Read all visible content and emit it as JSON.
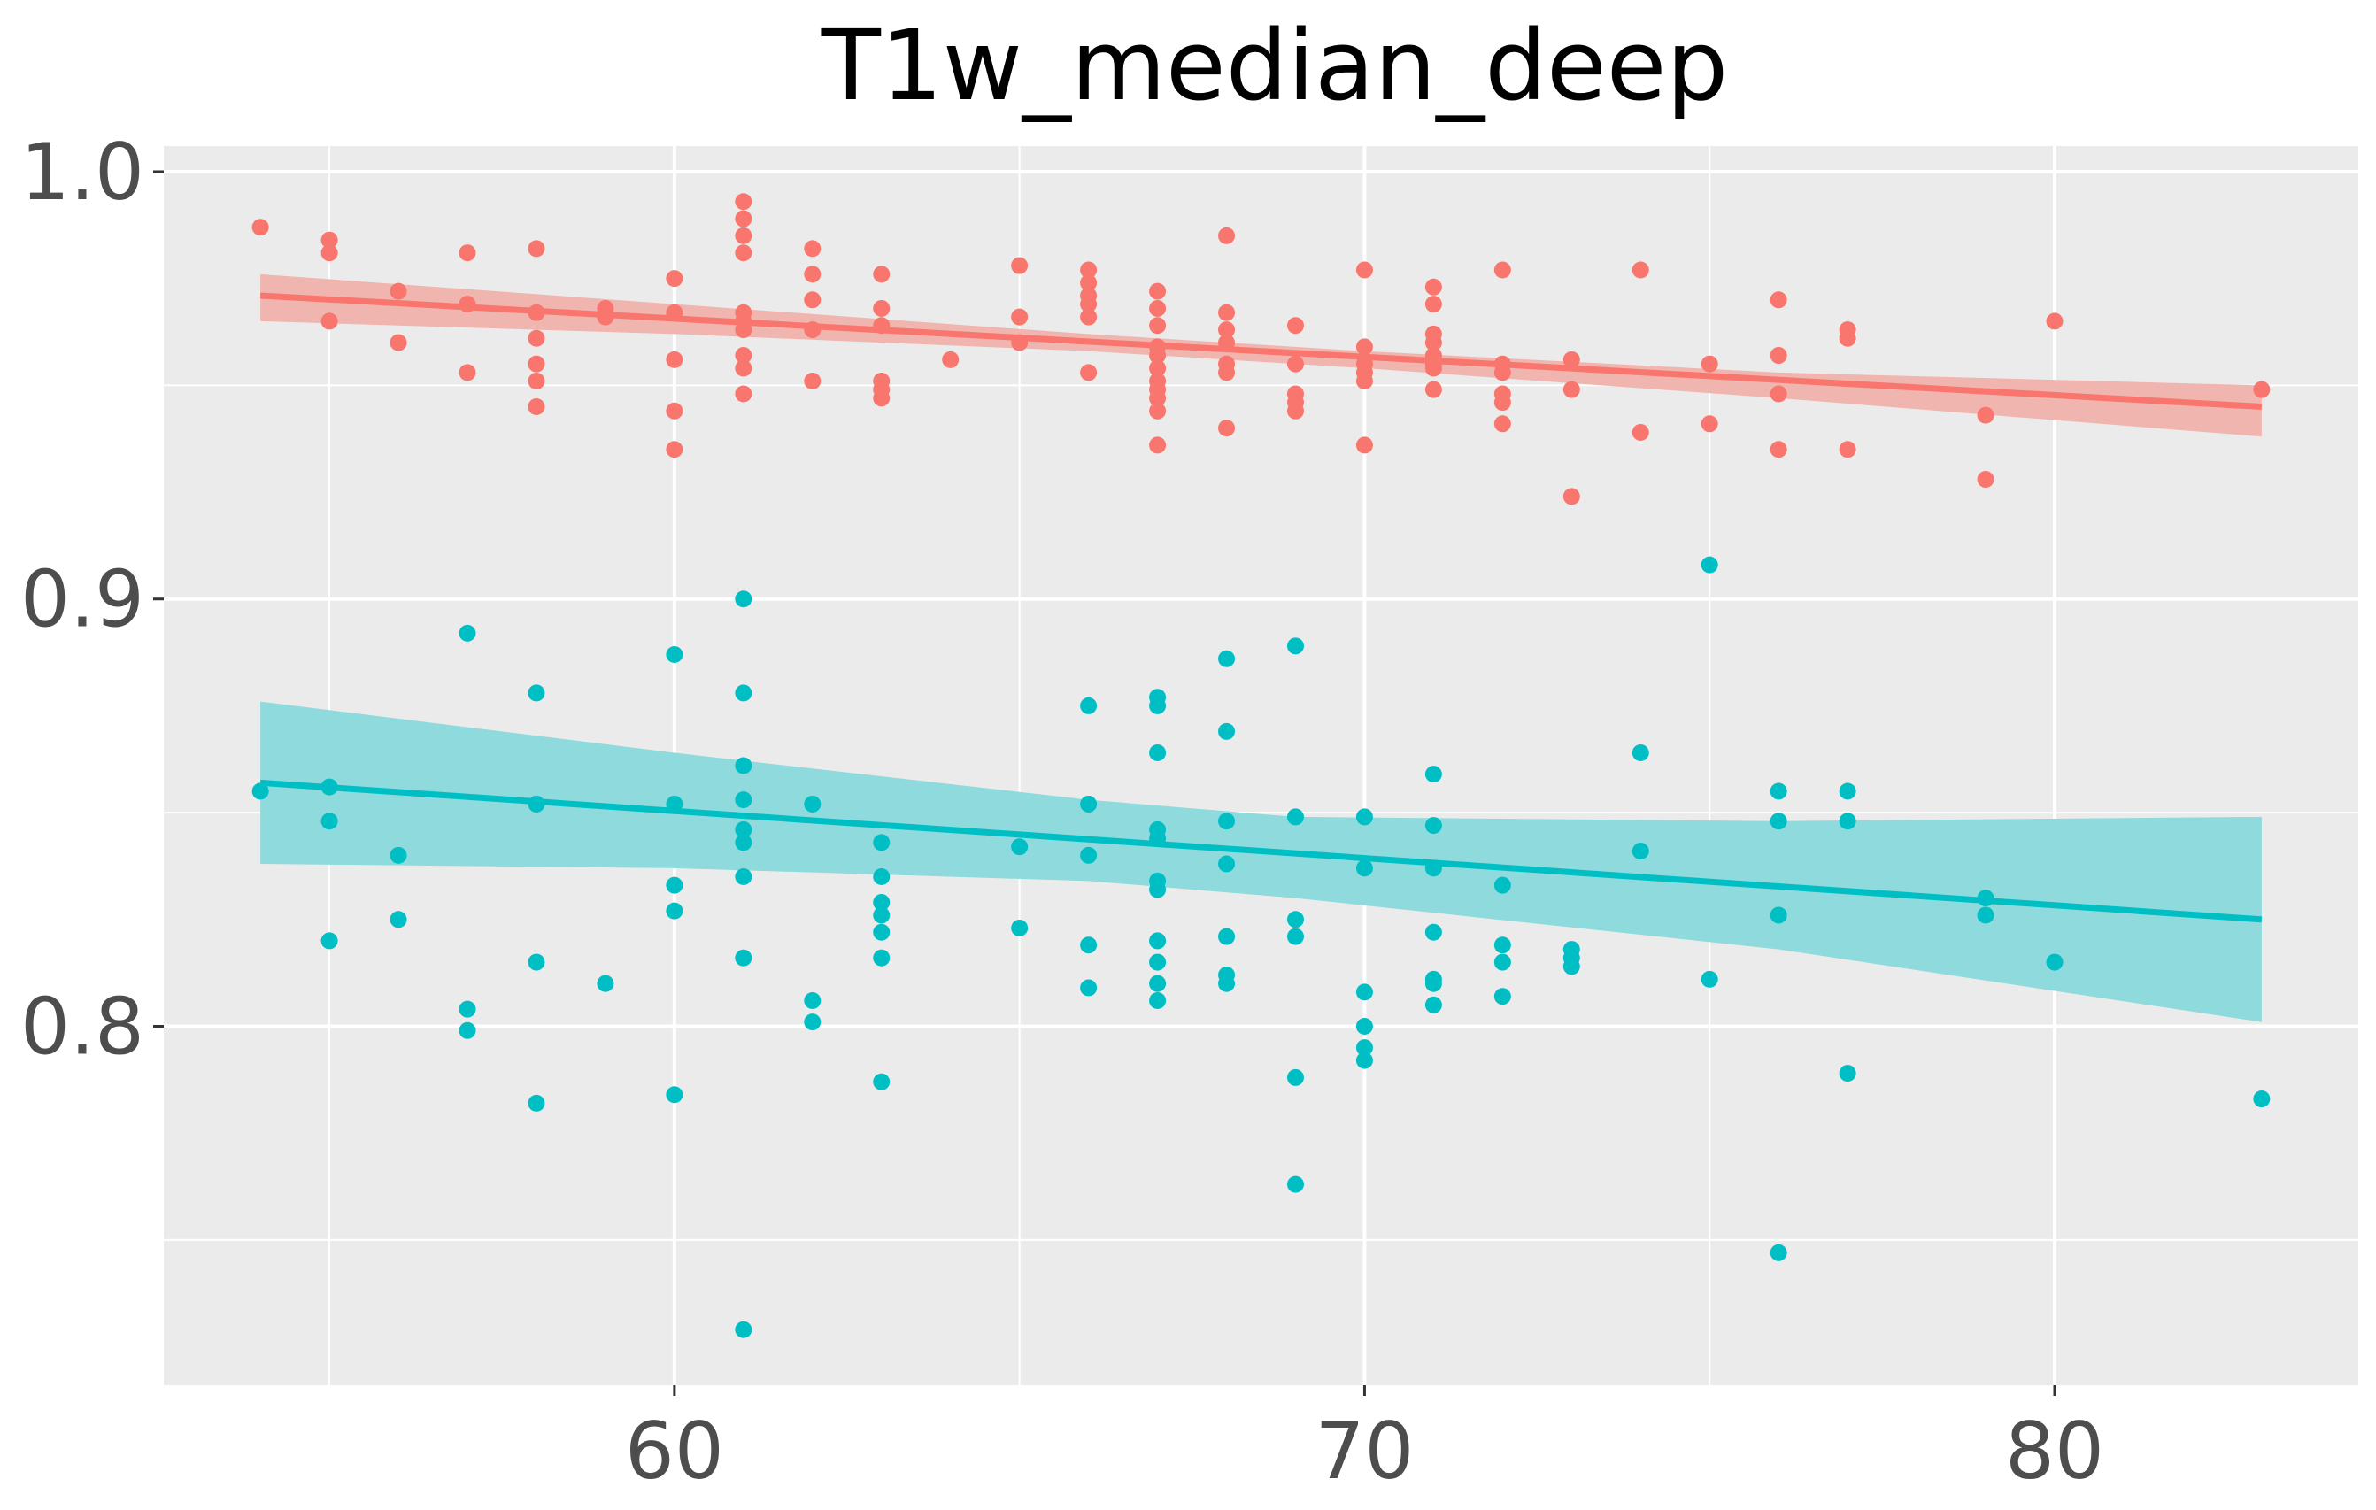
{
  "chart_data": {
    "type": "scatter",
    "title": "T1w_median_deep",
    "xlabel": "",
    "ylabel": "",
    "xlim": [
      52.6,
      84.4
    ],
    "ylim": [
      0.716,
      1.006
    ],
    "x_ticks": [
      60,
      70,
      80
    ],
    "x_tick_labels": [
      "60",
      "70",
      "80"
    ],
    "x_minor_ticks": [
      55,
      65,
      75
    ],
    "y_ticks": [
      0.8,
      0.9,
      1.0
    ],
    "y_tick_labels": [
      "0.8",
      "0.9",
      "1.0"
    ],
    "y_minor_ticks": [
      0.75,
      0.85,
      0.95
    ],
    "grid": true,
    "legend": "none",
    "colors": {
      "panel_bg": "#ebebeb",
      "grid": "#ffffff",
      "series_1": "#f8766d",
      "series_1_band": "#f1b5b0",
      "series_2": "#00bfc4",
      "series_2_band": "#8fdadc"
    },
    "series": [
      {
        "color": "#f8766d",
        "fit": {
          "x": [
            54,
            83
          ],
          "y": [
            0.971,
            0.945
          ]
        },
        "ci": {
          "x": [
            54,
            60,
            66,
            70,
            76,
            83
          ],
          "lower": [
            0.965,
            0.962,
            0.958,
            0.954,
            0.947,
            0.938
          ],
          "upper": [
            0.976,
            0.969,
            0.962,
            0.958,
            0.953,
            0.95
          ]
        },
        "points": [
          [
            54,
            0.987
          ],
          [
            55,
            0.984
          ],
          [
            55,
            0.981
          ],
          [
            55,
            0.965
          ],
          [
            56,
            0.972
          ],
          [
            56,
            0.96
          ],
          [
            57,
            0.981
          ],
          [
            57,
            0.969
          ],
          [
            57,
            0.953
          ],
          [
            58,
            0.982
          ],
          [
            58,
            0.967
          ],
          [
            58,
            0.961
          ],
          [
            58,
            0.955
          ],
          [
            58,
            0.951
          ],
          [
            58,
            0.945
          ],
          [
            59,
            0.968
          ],
          [
            59,
            0.966
          ],
          [
            60,
            0.975
          ],
          [
            60,
            0.967
          ],
          [
            60,
            0.956
          ],
          [
            60,
            0.944
          ],
          [
            60,
            0.935
          ],
          [
            61,
            0.993
          ],
          [
            61,
            0.989
          ],
          [
            61,
            0.985
          ],
          [
            61,
            0.981
          ],
          [
            61,
            0.967
          ],
          [
            61,
            0.965
          ],
          [
            61,
            0.963
          ],
          [
            61,
            0.957
          ],
          [
            61,
            0.954
          ],
          [
            61,
            0.948
          ],
          [
            62,
            0.982
          ],
          [
            62,
            0.976
          ],
          [
            62,
            0.97
          ],
          [
            62,
            0.963
          ],
          [
            62,
            0.951
          ],
          [
            63,
            0.976
          ],
          [
            63,
            0.968
          ],
          [
            63,
            0.964
          ],
          [
            63,
            0.951
          ],
          [
            63,
            0.949
          ],
          [
            63,
            0.947
          ],
          [
            64,
            0.956
          ],
          [
            65,
            0.978
          ],
          [
            65,
            0.966
          ],
          [
            65,
            0.96
          ],
          [
            66,
            0.977
          ],
          [
            66,
            0.974
          ],
          [
            66,
            0.971
          ],
          [
            66,
            0.969
          ],
          [
            66,
            0.966
          ],
          [
            66,
            0.953
          ],
          [
            67,
            0.972
          ],
          [
            67,
            0.968
          ],
          [
            67,
            0.964
          ],
          [
            67,
            0.959
          ],
          [
            67,
            0.957
          ],
          [
            67,
            0.954
          ],
          [
            67,
            0.951
          ],
          [
            67,
            0.949
          ],
          [
            67,
            0.947
          ],
          [
            67,
            0.944
          ],
          [
            67,
            0.936
          ],
          [
            68,
            0.985
          ],
          [
            68,
            0.967
          ],
          [
            68,
            0.963
          ],
          [
            68,
            0.96
          ],
          [
            68,
            0.955
          ],
          [
            68,
            0.953
          ],
          [
            68,
            0.94
          ],
          [
            69,
            0.964
          ],
          [
            69,
            0.955
          ],
          [
            69,
            0.948
          ],
          [
            69,
            0.946
          ],
          [
            69,
            0.944
          ],
          [
            70,
            0.977
          ],
          [
            70,
            0.959
          ],
          [
            70,
            0.955
          ],
          [
            70,
            0.953
          ],
          [
            70,
            0.951
          ],
          [
            70,
            0.936
          ],
          [
            71,
            0.973
          ],
          [
            71,
            0.969
          ],
          [
            71,
            0.962
          ],
          [
            71,
            0.96
          ],
          [
            71,
            0.957
          ],
          [
            71,
            0.955
          ],
          [
            71,
            0.954
          ],
          [
            71,
            0.949
          ],
          [
            72,
            0.977
          ],
          [
            72,
            0.955
          ],
          [
            72,
            0.953
          ],
          [
            72,
            0.948
          ],
          [
            72,
            0.946
          ],
          [
            72,
            0.941
          ],
          [
            73,
            0.956
          ],
          [
            73,
            0.949
          ],
          [
            73,
            0.924
          ],
          [
            74,
            0.977
          ],
          [
            74,
            0.939
          ],
          [
            75,
            0.955
          ],
          [
            75,
            0.941
          ],
          [
            76,
            0.97
          ],
          [
            76,
            0.957
          ],
          [
            76,
            0.948
          ],
          [
            76,
            0.935
          ],
          [
            77,
            0.963
          ],
          [
            77,
            0.961
          ],
          [
            77,
            0.935
          ],
          [
            79,
            0.943
          ],
          [
            79,
            0.928
          ],
          [
            80,
            0.965
          ],
          [
            83,
            0.949
          ]
        ]
      },
      {
        "color": "#00bfc4",
        "fit": {
          "x": [
            54,
            83
          ],
          "y": [
            0.857,
            0.825
          ]
        },
        "ci": {
          "x": [
            54,
            60,
            66,
            69,
            76,
            83
          ],
          "lower": [
            0.838,
            0.837,
            0.834,
            0.83,
            0.818,
            0.801
          ],
          "upper": [
            0.876,
            0.864,
            0.853,
            0.849,
            0.848,
            0.849
          ]
        },
        "points": [
          [
            54,
            0.855
          ],
          [
            55,
            0.856
          ],
          [
            55,
            0.848
          ],
          [
            55,
            0.82
          ],
          [
            56,
            0.84
          ],
          [
            56,
            0.825
          ],
          [
            57,
            0.892
          ],
          [
            57,
            0.804
          ],
          [
            57,
            0.799
          ],
          [
            58,
            0.878
          ],
          [
            58,
            0.852
          ],
          [
            58,
            0.815
          ],
          [
            58,
            0.782
          ],
          [
            59,
            0.81
          ],
          [
            60,
            0.887
          ],
          [
            60,
            0.852
          ],
          [
            60,
            0.833
          ],
          [
            60,
            0.827
          ],
          [
            60,
            0.784
          ],
          [
            61,
            0.9
          ],
          [
            61,
            0.878
          ],
          [
            61,
            0.861
          ],
          [
            61,
            0.853
          ],
          [
            61,
            0.846
          ],
          [
            61,
            0.843
          ],
          [
            61,
            0.835
          ],
          [
            61,
            0.816
          ],
          [
            61,
            0.729
          ],
          [
            62,
            0.852
          ],
          [
            62,
            0.806
          ],
          [
            62,
            0.801
          ],
          [
            63,
            0.843
          ],
          [
            63,
            0.835
          ],
          [
            63,
            0.829
          ],
          [
            63,
            0.826
          ],
          [
            63,
            0.822
          ],
          [
            63,
            0.816
          ],
          [
            63,
            0.787
          ],
          [
            65,
            0.842
          ],
          [
            65,
            0.823
          ],
          [
            66,
            0.875
          ],
          [
            66,
            0.852
          ],
          [
            66,
            0.84
          ],
          [
            66,
            0.819
          ],
          [
            66,
            0.809
          ],
          [
            67,
            0.877
          ],
          [
            67,
            0.875
          ],
          [
            67,
            0.864
          ],
          [
            67,
            0.846
          ],
          [
            67,
            0.844
          ],
          [
            67,
            0.834
          ],
          [
            67,
            0.832
          ],
          [
            67,
            0.82
          ],
          [
            67,
            0.815
          ],
          [
            67,
            0.81
          ],
          [
            67,
            0.806
          ],
          [
            68,
            0.886
          ],
          [
            68,
            0.869
          ],
          [
            68,
            0.848
          ],
          [
            68,
            0.838
          ],
          [
            68,
            0.821
          ],
          [
            68,
            0.812
          ],
          [
            68,
            0.81
          ],
          [
            69,
            0.889
          ],
          [
            69,
            0.849
          ],
          [
            69,
            0.825
          ],
          [
            69,
            0.821
          ],
          [
            69,
            0.788
          ],
          [
            69,
            0.763
          ],
          [
            70,
            0.849
          ],
          [
            70,
            0.837
          ],
          [
            70,
            0.808
          ],
          [
            70,
            0.8
          ],
          [
            70,
            0.795
          ],
          [
            70,
            0.792
          ],
          [
            71,
            0.859
          ],
          [
            71,
            0.847
          ],
          [
            71,
            0.837
          ],
          [
            71,
            0.822
          ],
          [
            71,
            0.811
          ],
          [
            71,
            0.81
          ],
          [
            71,
            0.805
          ],
          [
            72,
            0.833
          ],
          [
            72,
            0.819
          ],
          [
            72,
            0.815
          ],
          [
            72,
            0.807
          ],
          [
            73,
            0.818
          ],
          [
            73,
            0.816
          ],
          [
            73,
            0.814
          ],
          [
            74,
            0.864
          ],
          [
            74,
            0.841
          ],
          [
            75,
            0.908
          ],
          [
            75,
            0.811
          ],
          [
            76,
            0.855
          ],
          [
            76,
            0.848
          ],
          [
            76,
            0.826
          ],
          [
            76,
            0.747
          ],
          [
            77,
            0.855
          ],
          [
            77,
            0.848
          ],
          [
            77,
            0.789
          ],
          [
            79,
            0.83
          ],
          [
            79,
            0.826
          ],
          [
            80,
            0.815
          ],
          [
            83,
            0.783
          ]
        ]
      }
    ]
  }
}
